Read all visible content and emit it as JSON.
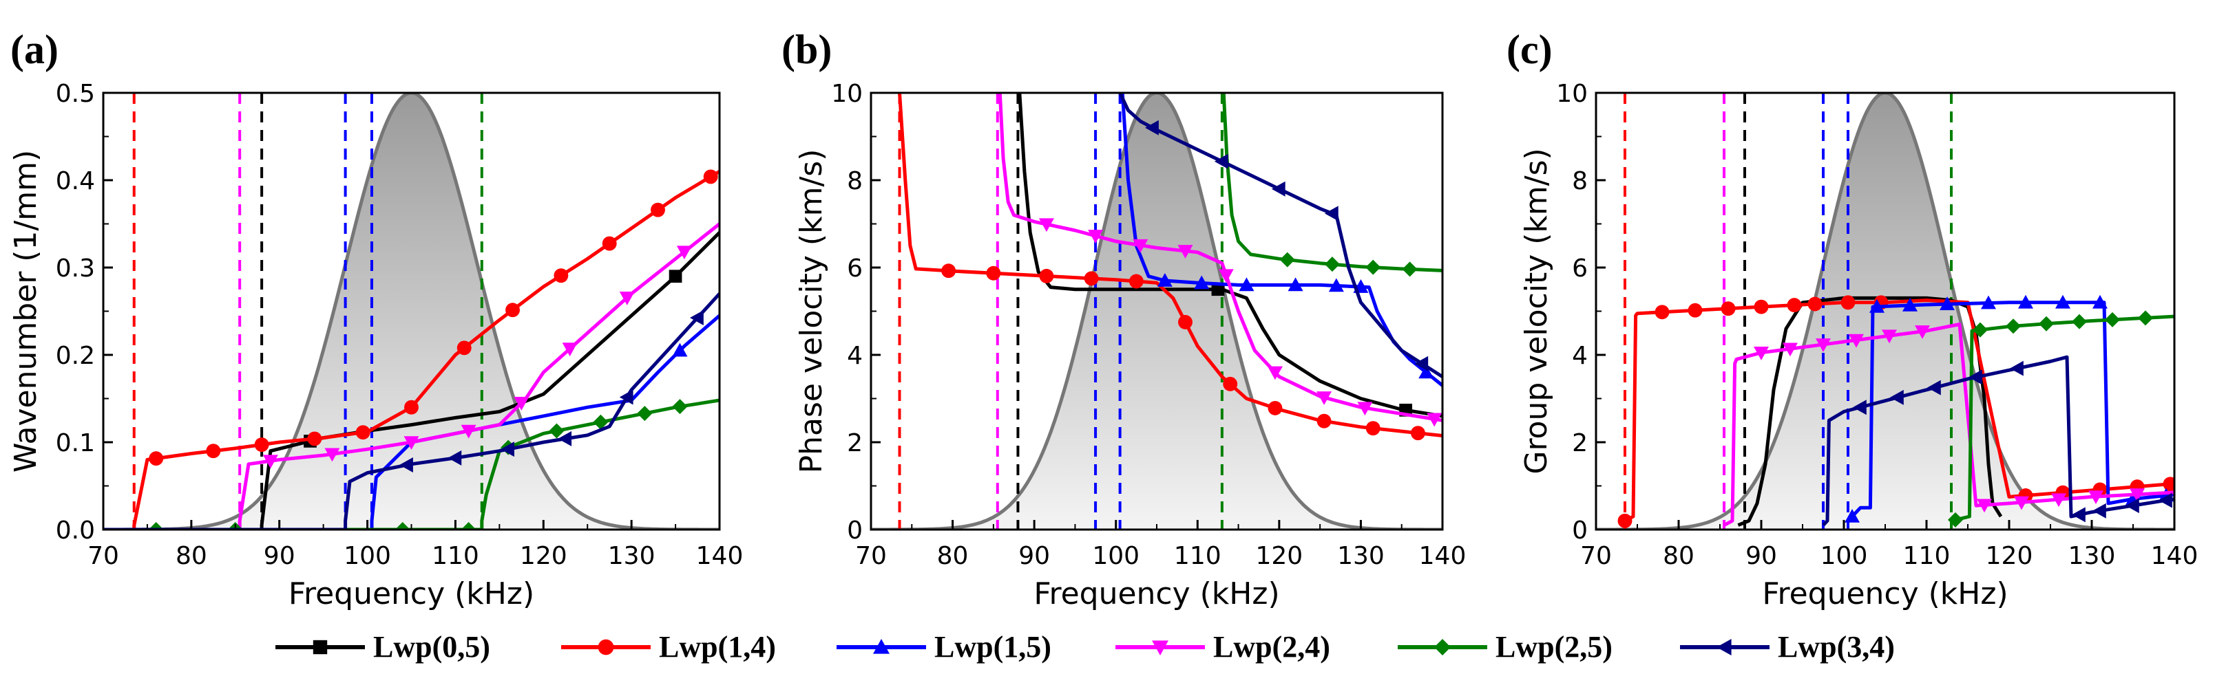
{
  "figure": {
    "legend": [
      {
        "label": "Lwp(0,5)",
        "color": "#000000",
        "marker": "square"
      },
      {
        "label": "Lwp(1,4)",
        "color": "#ff0000",
        "marker": "circle"
      },
      {
        "label": "Lwp(1,5)",
        "color": "#0000ff",
        "marker": "triangle-up"
      },
      {
        "label": "Lwp(2,4)",
        "color": "#ff00ff",
        "marker": "triangle-down"
      },
      {
        "label": "Lwp(2,5)",
        "color": "#008000",
        "marker": "diamond"
      },
      {
        "label": "Lwp(3,4)",
        "color": "#000080",
        "marker": "triangle-left"
      }
    ]
  },
  "chart_data": [
    {
      "panel": "(a)",
      "type": "line",
      "xlabel": "Frequency (kHz)",
      "ylabel": "Wavenumber (1/mm)",
      "xlim": [
        70,
        140
      ],
      "ylim": [
        0,
        0.5
      ],
      "xticks": [
        70,
        80,
        90,
        100,
        110,
        120,
        130,
        140
      ],
      "yticks": [
        0.0,
        0.1,
        0.2,
        0.3,
        0.4,
        0.5
      ],
      "ytick_labels": [
        "0.0",
        "0.1",
        "0.2",
        "0.3",
        "0.4",
        "0.5"
      ],
      "spectrum": {
        "center": 105,
        "width": 7.5,
        "max": 0.5
      },
      "cutoffs": [
        {
          "x": 73.5,
          "color": "#ff0000"
        },
        {
          "x": 85.5,
          "color": "#ff00ff"
        },
        {
          "x": 88,
          "color": "#000000"
        },
        {
          "x": 97.5,
          "color": "#0000ff"
        },
        {
          "x": 100.5,
          "color": "#0000ff"
        },
        {
          "x": 113,
          "color": "#008000"
        }
      ],
      "series": [
        {
          "name": "Lwp(0,5)",
          "color": "#000000",
          "marker": "square",
          "x": [
            70,
            88,
            88,
            89,
            95,
            100,
            105,
            110,
            115,
            120,
            125,
            130,
            135,
            140
          ],
          "y": [
            0,
            0,
            0.005,
            0.09,
            0.105,
            0.113,
            0.12,
            0.128,
            0.135,
            0.155,
            0.2,
            0.245,
            0.29,
            0.34
          ],
          "marker_x": [
            93.5,
            135
          ]
        },
        {
          "name": "Lwp(1,4)",
          "color": "#ff0000",
          "marker": "circle",
          "x": [
            70,
            73.5,
            73.5,
            75,
            80,
            85,
            90,
            95,
            100,
            105,
            110,
            115,
            120,
            125,
            130,
            135,
            140
          ],
          "y": [
            0,
            0,
            0.005,
            0.08,
            0.087,
            0.093,
            0.1,
            0.105,
            0.112,
            0.14,
            0.2,
            0.24,
            0.278,
            0.31,
            0.345,
            0.38,
            0.41
          ],
          "marker_x": [
            76,
            82.5,
            88,
            94,
            99.5,
            105,
            111,
            116.5,
            122,
            127.5,
            133,
            139
          ]
        },
        {
          "name": "Lwp(1,5)",
          "color": "#0000ff",
          "marker": "triangle-up",
          "x": [
            70,
            100.5,
            100.5,
            101,
            105,
            110,
            115,
            120,
            125,
            130,
            133,
            136,
            140
          ],
          "y": [
            0,
            0,
            0.01,
            0.06,
            0.1,
            0.11,
            0.12,
            0.13,
            0.14,
            0.148,
            0.18,
            0.21,
            0.245
          ],
          "marker_x": [
            135.5
          ]
        },
        {
          "name": "Lwp(2,4)",
          "color": "#ff00ff",
          "marker": "triangle-down",
          "x": [
            70,
            85.5,
            85.5,
            86.5,
            90,
            95,
            100,
            105,
            110,
            115,
            118,
            120,
            125,
            130,
            135,
            140
          ],
          "y": [
            0,
            0,
            0.01,
            0.075,
            0.08,
            0.085,
            0.092,
            0.1,
            0.11,
            0.12,
            0.15,
            0.18,
            0.225,
            0.27,
            0.31,
            0.35
          ],
          "marker_x": [
            89,
            96,
            105,
            111.5,
            117.5,
            123,
            129.5,
            136
          ]
        },
        {
          "name": "Lwp(2,5)",
          "color": "#008000",
          "marker": "diamond",
          "x": [
            70,
            113,
            113,
            113.5,
            115,
            120,
            125,
            130,
            135,
            140
          ],
          "y": [
            0,
            0,
            0.01,
            0.04,
            0.09,
            0.11,
            0.12,
            0.13,
            0.14,
            0.148
          ],
          "marker_x": [
            76,
            85,
            104,
            111.5,
            116,
            121.5,
            126.5,
            131.5,
            135.5
          ]
        },
        {
          "name": "Lwp(3,4)",
          "color": "#000080",
          "marker": "triangle-left",
          "x": [
            70,
            97.5,
            97.5,
            98,
            100,
            105,
            110,
            115,
            120,
            125,
            127.5,
            130,
            135,
            140
          ],
          "y": [
            0,
            0,
            0.01,
            0.055,
            0.065,
            0.075,
            0.082,
            0.09,
            0.1,
            0.108,
            0.118,
            0.16,
            0.215,
            0.27
          ],
          "marker_x": [
            104.5,
            110,
            116,
            122.5,
            129.5,
            137.5
          ]
        }
      ]
    },
    {
      "panel": "(b)",
      "type": "line",
      "xlabel": "Frequency (kHz)",
      "ylabel": "Phase velocity (km/s)",
      "xlim": [
        70,
        140
      ],
      "ylim": [
        0,
        10
      ],
      "xticks": [
        70,
        80,
        90,
        100,
        110,
        120,
        130,
        140
      ],
      "yticks": [
        0,
        2,
        4,
        6,
        8,
        10
      ],
      "ytick_labels": [
        "0",
        "2",
        "4",
        "6",
        "8",
        "10"
      ],
      "spectrum": {
        "center": 105,
        "width": 7.5,
        "max": 10
      },
      "cutoffs": [
        {
          "x": 73.5,
          "color": "#ff0000"
        },
        {
          "x": 85.5,
          "color": "#ff00ff"
        },
        {
          "x": 88,
          "color": "#000000"
        },
        {
          "x": 97.5,
          "color": "#0000ff"
        },
        {
          "x": 100.5,
          "color": "#0000ff"
        },
        {
          "x": 113,
          "color": "#008000"
        }
      ],
      "series": [
        {
          "name": "Lwp(0,5)",
          "color": "#000000",
          "marker": "square",
          "x": [
            88.2,
            88.8,
            89.5,
            90.5,
            92,
            95,
            100,
            105,
            110,
            113,
            116,
            118,
            120,
            125,
            130,
            135,
            140
          ],
          "y": [
            10,
            8.2,
            6.8,
            5.9,
            5.55,
            5.5,
            5.5,
            5.5,
            5.5,
            5.5,
            5.3,
            4.6,
            4.0,
            3.4,
            3.0,
            2.75,
            2.6
          ],
          "marker_x": [
            112.5,
            135.5
          ]
        },
        {
          "name": "Lwp(1,4)",
          "color": "#ff0000",
          "marker": "circle",
          "x": [
            73.5,
            74.2,
            74.8,
            75.5,
            80,
            90,
            100,
            105,
            107,
            110,
            113,
            116,
            120,
            125,
            130,
            135,
            140
          ],
          "y": [
            10,
            8.0,
            6.5,
            5.97,
            5.92,
            5.82,
            5.72,
            5.65,
            5.3,
            4.2,
            3.5,
            3.0,
            2.75,
            2.5,
            2.35,
            2.25,
            2.15
          ],
          "marker_x": [
            79.5,
            85,
            91.5,
            97,
            102.5,
            108.5,
            114,
            119.5,
            125.5,
            131.5,
            137
          ]
        },
        {
          "name": "Lwp(1,5)",
          "color": "#0000ff",
          "marker": "triangle-up",
          "x": [
            100.8,
            101.5,
            102.5,
            104,
            106,
            110,
            115,
            120,
            125,
            131,
            132,
            134,
            136,
            138,
            140
          ],
          "y": [
            10,
            8.0,
            6.5,
            5.8,
            5.7,
            5.65,
            5.6,
            5.6,
            5.6,
            5.55,
            5.0,
            4.3,
            3.9,
            3.6,
            3.3
          ],
          "marker_x": [
            106,
            110.5,
            116,
            122,
            127,
            130,
            138
          ]
        },
        {
          "name": "Lwp(2,4)",
          "color": "#ff00ff",
          "marker": "triangle-down",
          "x": [
            85.8,
            86.2,
            86.8,
            87.5,
            90,
            95,
            100,
            105,
            110,
            113,
            115,
            117,
            120,
            125,
            130,
            135,
            140
          ],
          "y": [
            10,
            8.5,
            7.5,
            7.2,
            7.05,
            6.85,
            6.6,
            6.45,
            6.35,
            6.1,
            5.0,
            4.1,
            3.5,
            3.05,
            2.8,
            2.65,
            2.5
          ],
          "marker_x": [
            91.5,
            97.5,
            103,
            108.5,
            113.5,
            119.5,
            125.5,
            130.5,
            139
          ]
        },
        {
          "name": "Lwp(2,5)",
          "color": "#008000",
          "marker": "diamond",
          "x": [
            113.2,
            113.6,
            114.2,
            115,
            116.5,
            120,
            125,
            130,
            135,
            140
          ],
          "y": [
            10,
            8.5,
            7.2,
            6.6,
            6.3,
            6.2,
            6.1,
            6.02,
            5.97,
            5.93
          ],
          "marker_x": [
            121,
            126.5,
            131.5,
            136
          ]
        },
        {
          "name": "Lwp(3,4)",
          "color": "#000080",
          "marker": "triangle-left",
          "x": [
            100.5,
            101.5,
            103,
            105,
            110,
            115,
            120,
            125,
            127,
            128.5,
            130,
            135,
            140
          ],
          "y": [
            10,
            9.6,
            9.35,
            9.15,
            8.7,
            8.25,
            7.8,
            7.35,
            7.2,
            6.0,
            5.2,
            4.1,
            3.5
          ],
          "marker_x": [
            104.5,
            113,
            120,
            126.5,
            137.5
          ]
        }
      ]
    },
    {
      "panel": "(c)",
      "type": "line",
      "xlabel": "Frequency (kHz)",
      "ylabel": "Group velocity (km/s)",
      "xlim": [
        70,
        140
      ],
      "ylim": [
        0,
        10
      ],
      "xticks": [
        70,
        80,
        90,
        100,
        110,
        120,
        130,
        140
      ],
      "yticks": [
        0,
        2,
        4,
        6,
        8,
        10
      ],
      "ytick_labels": [
        "0",
        "2",
        "4",
        "6",
        "8",
        "10"
      ],
      "spectrum": {
        "center": 105,
        "width": 7.5,
        "max": 10
      },
      "cutoffs": [
        {
          "x": 73.5,
          "color": "#ff0000"
        },
        {
          "x": 85.5,
          "color": "#ff00ff"
        },
        {
          "x": 88,
          "color": "#000000"
        },
        {
          "x": 97.5,
          "color": "#0000ff"
        },
        {
          "x": 100.5,
          "color": "#0000ff"
        },
        {
          "x": 113,
          "color": "#008000"
        }
      ],
      "series": [
        {
          "name": "Lwp(0,5)",
          "color": "#000000",
          "marker": "square",
          "x": [
            87.2,
            88.5,
            89.5,
            90.5,
            91.5,
            93,
            95,
            100,
            105,
            110,
            113,
            115,
            116,
            117,
            117.5,
            118,
            119
          ],
          "y": [
            0.1,
            0.2,
            0.6,
            1.5,
            3.2,
            4.6,
            5.2,
            5.3,
            5.3,
            5.3,
            5.25,
            5.1,
            4.5,
            3.0,
            1.5,
            0.6,
            0.3
          ],
          "marker_x": []
        },
        {
          "name": "Lwp(1,4)",
          "color": "#ff0000",
          "marker": "circle",
          "x": [
            73.5,
            74.5,
            74.8,
            75,
            80,
            90,
            100,
            105,
            110,
            115,
            120,
            130,
            140
          ],
          "y": [
            0.2,
            0.3,
            4.9,
            4.95,
            5.0,
            5.1,
            5.2,
            5.2,
            5.25,
            5.2,
            0.75,
            0.9,
            1.05
          ],
          "marker_x": [
            73.5,
            78,
            82,
            86,
            90,
            94,
            96.5,
            100.5,
            104.5,
            122,
            126.5,
            131,
            135.5,
            139.5
          ]
        },
        {
          "name": "Lwp(1,5)",
          "color": "#0000ff",
          "marker": "triangle-up",
          "x": [
            100.5,
            102,
            103.2,
            103.5,
            110,
            120,
            130,
            131.5,
            132,
            135,
            140
          ],
          "y": [
            0.2,
            0.5,
            0.5,
            5.1,
            5.15,
            5.2,
            5.2,
            5.2,
            0.6,
            0.7,
            0.8
          ],
          "marker_x": [
            101,
            104,
            108,
            112.5,
            117.5,
            122,
            126.5,
            131,
            135,
            139
          ]
        },
        {
          "name": "Lwp(2,4)",
          "color": "#ff00ff",
          "marker": "triangle-down",
          "x": [
            85.5,
            86.5,
            86.8,
            87,
            90,
            100,
            110,
            114,
            116,
            120,
            130,
            140
          ],
          "y": [
            0.1,
            0.2,
            3.8,
            3.9,
            4.05,
            4.3,
            4.55,
            4.7,
            0.55,
            0.6,
            0.75,
            0.85
          ],
          "marker_x": [
            90,
            93.5,
            97.5,
            101.5,
            105.5,
            109.5,
            117,
            121.5,
            126,
            130.5,
            135.5
          ]
        },
        {
          "name": "Lwp(2,5)",
          "color": "#008000",
          "marker": "diamond",
          "x": [
            113,
            115.2,
            115.5,
            120,
            125,
            130,
            135,
            140
          ],
          "y": [
            0.2,
            0.3,
            4.55,
            4.65,
            4.72,
            4.78,
            4.83,
            4.88
          ],
          "marker_x": [
            113.5,
            116.5,
            120.5,
            124.5,
            128.5,
            132.5,
            136.5
          ]
        },
        {
          "name": "Lwp(3,4)",
          "color": "#000080",
          "marker": "triangle-left",
          "x": [
            97.5,
            98,
            98.2,
            100,
            105,
            110,
            115,
            120,
            125,
            127,
            127.5,
            130,
            135,
            140
          ],
          "y": [
            0.1,
            0.2,
            2.5,
            2.7,
            2.95,
            3.2,
            3.45,
            3.65,
            3.85,
            3.95,
            0.3,
            0.4,
            0.55,
            0.7
          ],
          "marker_x": [
            102,
            106.5,
            111,
            116,
            121,
            128.5,
            131,
            135,
            139
          ]
        }
      ]
    }
  ]
}
